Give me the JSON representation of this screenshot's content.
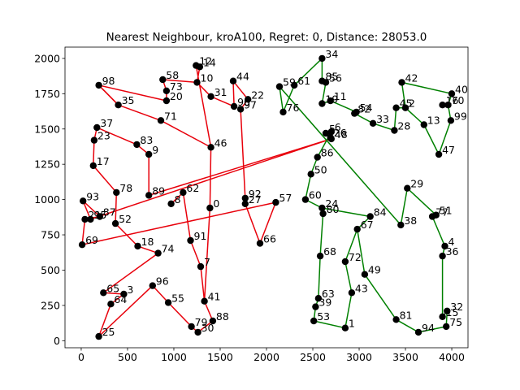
{
  "chart_data": {
    "type": "scatter",
    "title": "Nearest Neighbour, kroA100, Regret: 0, Distance: 28053.0",
    "xlabel": "",
    "ylabel": "",
    "xlim": [
      -175,
      4175
    ],
    "ylim": [
      -50,
      2080
    ],
    "xticks": [
      0,
      500,
      1000,
      1500,
      2000,
      2500,
      3000,
      3500,
      4000
    ],
    "yticks": [
      0,
      250,
      500,
      750,
      1000,
      1250,
      1500,
      1750,
      2000
    ],
    "grid": false,
    "colors": {
      "tour_a": "#e8000b",
      "tour_b": "#008000",
      "point": "#000000"
    },
    "points": [
      {
        "id": 0,
        "x": 1390,
        "y": 940
      },
      {
        "id": 1,
        "x": 2850,
        "y": 90
      },
      {
        "id": 2,
        "x": 3500,
        "y": 1650
      },
      {
        "id": 3,
        "x": 460,
        "y": 330
      },
      {
        "id": 4,
        "x": 3925,
        "y": 670
      },
      {
        "id": 5,
        "x": 2640,
        "y": 1470
      },
      {
        "id": 6,
        "x": 2700,
        "y": 1480
      },
      {
        "id": 7,
        "x": 1290,
        "y": 525
      },
      {
        "id": 8,
        "x": 970,
        "y": 970
      },
      {
        "id": 9,
        "x": 730,
        "y": 1320
      },
      {
        "id": 10,
        "x": 1250,
        "y": 1830
      },
      {
        "id": 11,
        "x": 2690,
        "y": 1700
      },
      {
        "id": 12,
        "x": 1240,
        "y": 1950
      },
      {
        "id": 13,
        "x": 3700,
        "y": 1530
      },
      {
        "id": 14,
        "x": 1280,
        "y": 1940
      },
      {
        "id": 15,
        "x": 3900,
        "y": 170
      },
      {
        "id": 16,
        "x": 3900,
        "y": 1670
      },
      {
        "id": 17,
        "x": 130,
        "y": 1240
      },
      {
        "id": 18,
        "x": 610,
        "y": 670
      },
      {
        "id": 19,
        "x": 2600,
        "y": 1680
      },
      {
        "id": 20,
        "x": 920,
        "y": 1700
      },
      {
        "id": 21,
        "x": 40,
        "y": 860
      },
      {
        "id": 22,
        "x": 1800,
        "y": 1710
      },
      {
        "id": 23,
        "x": 140,
        "y": 1420
      },
      {
        "id": 24,
        "x": 2600,
        "y": 940
      },
      {
        "id": 25,
        "x": 190,
        "y": 30
      },
      {
        "id": 26,
        "x": 2690,
        "y": 1440
      },
      {
        "id": 27,
        "x": 1770,
        "y": 970
      },
      {
        "id": 28,
        "x": 3380,
        "y": 1490
      },
      {
        "id": 29,
        "x": 3520,
        "y": 1080
      },
      {
        "id": 30,
        "x": 1260,
        "y": 60
      },
      {
        "id": 31,
        "x": 1400,
        "y": 1730
      },
      {
        "id": 32,
        "x": 3950,
        "y": 210
      },
      {
        "id": 33,
        "x": 3150,
        "y": 1540
      },
      {
        "id": 34,
        "x": 2600,
        "y": 2000
      },
      {
        "id": 35,
        "x": 400,
        "y": 1670
      },
      {
        "id": 36,
        "x": 3900,
        "y": 600
      },
      {
        "id": 37,
        "x": 170,
        "y": 1510
      },
      {
        "id": 38,
        "x": 3450,
        "y": 820
      },
      {
        "id": 39,
        "x": 2530,
        "y": 240
      },
      {
        "id": 40,
        "x": 4000,
        "y": 1750
      },
      {
        "id": 41,
        "x": 1330,
        "y": 280
      },
      {
        "id": 42,
        "x": 3460,
        "y": 1830
      },
      {
        "id": 43,
        "x": 2920,
        "y": 340
      },
      {
        "id": 44,
        "x": 1640,
        "y": 1840
      },
      {
        "id": 45,
        "x": 3400,
        "y": 1650
      },
      {
        "id": 46,
        "x": 1400,
        "y": 1370
      },
      {
        "id": 47,
        "x": 3860,
        "y": 1320
      },
      {
        "id": 48,
        "x": 2700,
        "y": 1430
      },
      {
        "id": 49,
        "x": 3060,
        "y": 470
      },
      {
        "id": 50,
        "x": 2480,
        "y": 1180
      },
      {
        "id": 51,
        "x": 3830,
        "y": 890
      },
      {
        "id": 52,
        "x": 370,
        "y": 830
      },
      {
        "id": 53,
        "x": 2510,
        "y": 140
      },
      {
        "id": 54,
        "x": 2970,
        "y": 1620
      },
      {
        "id": 55,
        "x": 940,
        "y": 270
      },
      {
        "id": 56,
        "x": 2640,
        "y": 1830
      },
      {
        "id": 57,
        "x": 2100,
        "y": 980
      },
      {
        "id": 58,
        "x": 880,
        "y": 1850
      },
      {
        "id": 59,
        "x": 2140,
        "y": 1800
      },
      {
        "id": 60,
        "x": 2420,
        "y": 1000
      },
      {
        "id": 61,
        "x": 2300,
        "y": 1810
      },
      {
        "id": 62,
        "x": 1100,
        "y": 1050
      },
      {
        "id": 63,
        "x": 2560,
        "y": 300
      },
      {
        "id": 64,
        "x": 320,
        "y": 260
      },
      {
        "id": 65,
        "x": 240,
        "y": 340
      },
      {
        "id": 66,
        "x": 1930,
        "y": 690
      },
      {
        "id": 67,
        "x": 2980,
        "y": 790
      },
      {
        "id": 68,
        "x": 2580,
        "y": 600
      },
      {
        "id": 69,
        "x": 10,
        "y": 680
      },
      {
        "id": 70,
        "x": 3960,
        "y": 1670
      },
      {
        "id": 71,
        "x": 860,
        "y": 1560
      },
      {
        "id": 72,
        "x": 2850,
        "y": 560
      },
      {
        "id": 73,
        "x": 920,
        "y": 1770
      },
      {
        "id": 74,
        "x": 830,
        "y": 620
      },
      {
        "id": 75,
        "x": 3940,
        "y": 100
      },
      {
        "id": 76,
        "x": 2180,
        "y": 1620
      },
      {
        "id": 77,
        "x": 3790,
        "y": 880
      },
      {
        "id": 78,
        "x": 380,
        "y": 1050
      },
      {
        "id": 79,
        "x": 1190,
        "y": 100
      },
      {
        "id": 80,
        "x": 2610,
        "y": 900
      },
      {
        "id": 81,
        "x": 3400,
        "y": 150
      },
      {
        "id": 82,
        "x": 2950,
        "y": 1610
      },
      {
        "id": 83,
        "x": 600,
        "y": 1390
      },
      {
        "id": 84,
        "x": 3120,
        "y": 880
      },
      {
        "id": 85,
        "x": 2600,
        "y": 1840
      },
      {
        "id": 86,
        "x": 2550,
        "y": 1300
      },
      {
        "id": 87,
        "x": 200,
        "y": 880
      },
      {
        "id": 88,
        "x": 1420,
        "y": 140
      },
      {
        "id": 89,
        "x": 730,
        "y": 1030
      },
      {
        "id": 90,
        "x": 1650,
        "y": 1660
      },
      {
        "id": 91,
        "x": 1180,
        "y": 710
      },
      {
        "id": 92,
        "x": 1770,
        "y": 1010
      },
      {
        "id": 93,
        "x": 20,
        "y": 990
      },
      {
        "id": 94,
        "x": 3640,
        "y": 60
      },
      {
        "id": 95,
        "x": 100,
        "y": 860
      },
      {
        "id": 96,
        "x": 770,
        "y": 390
      },
      {
        "id": 97,
        "x": 1720,
        "y": 1640
      },
      {
        "id": 98,
        "x": 190,
        "y": 1810
      },
      {
        "id": 99,
        "x": 3990,
        "y": 1560
      }
    ],
    "series": [
      {
        "color_key": "tour_a",
        "path": [
          57,
          66,
          27,
          92,
          97,
          22,
          44,
          90,
          31,
          10,
          14,
          12,
          46,
          0,
          41,
          88,
          30,
          79,
          55,
          96,
          25,
          64,
          3,
          65,
          74,
          18,
          52,
          78,
          17,
          23,
          37,
          83,
          9,
          89,
          48,
          95,
          93,
          87,
          21,
          69,
          57
        ]
      },
      {
        "color_key": "tour_b",
        "path": [
          59,
          76,
          61,
          34,
          85,
          56,
          19,
          11,
          54,
          82,
          33,
          28,
          45,
          2,
          42,
          40,
          70,
          99,
          47,
          13,
          2
        ]
      },
      {
        "color_key": "tour_b",
        "path": [
          59,
          38,
          29,
          51,
          77,
          4,
          36,
          15,
          32,
          75,
          94,
          81,
          49,
          67,
          84,
          24
        ]
      },
      {
        "color_key": "tour_b",
        "path": [
          26,
          5,
          6,
          86,
          50,
          60,
          24,
          80,
          68,
          63,
          39,
          53,
          1,
          43,
          72,
          67
        ]
      },
      {
        "color_key": "tour_a",
        "path": [
          35,
          98,
          20,
          73,
          58,
          10
        ]
      },
      {
        "color_key": "tour_a",
        "path": [
          71,
          46
        ]
      },
      {
        "color_key": "tour_a",
        "path": [
          8,
          62,
          91,
          7,
          41
        ]
      },
      {
        "color_key": "tour_a",
        "path": [
          98,
          35,
          71
        ]
      }
    ]
  }
}
